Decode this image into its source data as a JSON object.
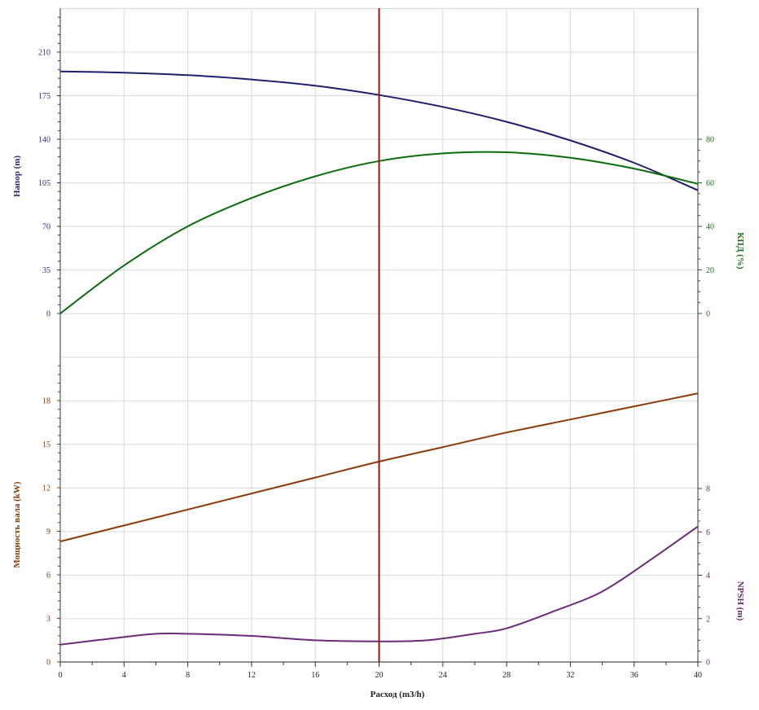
{
  "chart_data": {
    "type": "line",
    "xlabel": "Расход (m3/h)",
    "x_ticks": [
      "0",
      "4",
      "8",
      "12",
      "16",
      "20",
      "24",
      "28",
      "32",
      "36",
      "40"
    ],
    "xlim": [
      0,
      40
    ],
    "grid": true,
    "marker_line": {
      "x": 20,
      "color": "#8b1a1a"
    },
    "panels": [
      {
        "name": "top",
        "left_axis": {
          "label": "Напор (m)",
          "color": "#2b2b7a",
          "ylim": [
            0,
            210
          ],
          "ticks": [
            "0",
            "35",
            "70",
            "105",
            "140",
            "175",
            "210"
          ]
        },
        "right_axis": {
          "label": "КПД (%)",
          "color": "#1e6e1e",
          "ylim": [
            0,
            80
          ],
          "ticks": [
            "0",
            "20",
            "40",
            "60",
            "80"
          ]
        },
        "series": [
          {
            "axis": "left",
            "color": "#1f1f6e",
            "x": [
              0,
              4,
              8,
              12,
              16,
              20,
              24,
              28,
              32,
              36,
              40
            ],
            "y": [
              194.5,
              193.5,
              191.5,
              188,
              183,
              175.5,
              166,
              154,
              139,
              121,
              99
            ]
          },
          {
            "axis": "right",
            "color": "#0c6b0c",
            "x": [
              0,
              4,
              8,
              12,
              16,
              20,
              24,
              28,
              32,
              36,
              40
            ],
            "y": [
              0,
              22,
              40,
              53,
              63,
              70,
              73.5,
              74,
              71.5,
              66.5,
              59.5
            ]
          }
        ]
      },
      {
        "name": "bottom",
        "left_axis": {
          "label": "Мощность вала (kW)",
          "color": "#8b3a0a",
          "ylim": [
            0,
            18
          ],
          "ticks": [
            "0",
            "3",
            "6",
            "9",
            "12",
            "15",
            "18"
          ]
        },
        "right_axis": {
          "label": "NPSH (m)",
          "color": "#6b2a6b",
          "ylim": [
            0,
            8
          ],
          "ticks": [
            "0",
            "2",
            "4",
            "6",
            "8"
          ]
        },
        "series": [
          {
            "axis": "left",
            "color": "#8b3a0a",
            "x": [
              0,
              4,
              8,
              12,
              16,
              20,
              24,
              28,
              32,
              36,
              40
            ],
            "y": [
              8.3,
              9.4,
              10.5,
              11.6,
              12.7,
              13.8,
              14.8,
              15.8,
              16.7,
              17.6,
              18.5
            ]
          },
          {
            "axis": "right",
            "color": "#6b2a7a",
            "x": [
              0,
              4,
              6,
              8,
              12,
              16,
              20,
              23,
              26,
              28,
              31,
              34,
              37,
              40
            ],
            "y": [
              0.8,
              1.15,
              1.3,
              1.3,
              1.2,
              1.0,
              0.95,
              1.0,
              1.3,
              1.55,
              2.35,
              3.25,
              4.7,
              6.25
            ]
          }
        ]
      }
    ]
  }
}
